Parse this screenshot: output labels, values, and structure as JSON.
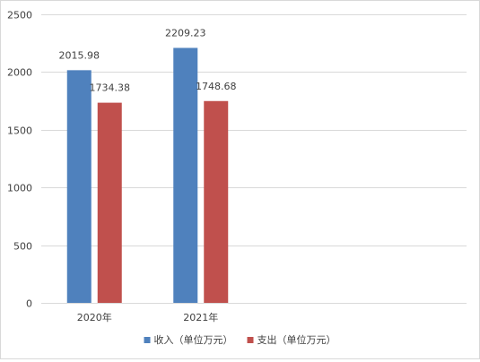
{
  "chart_data": {
    "type": "bar",
    "title": "",
    "xlabel": "",
    "ylabel": "",
    "categories": [
      "2020年",
      "2021年"
    ],
    "slots": 4,
    "series": [
      {
        "name": "收入（单位万元）",
        "values": [
          2015.98,
          2209.23
        ],
        "labels": [
          "2015.98",
          "2209.23"
        ],
        "color": "#4f81bd"
      },
      {
        "name": "支出（单位万元）",
        "values": [
          1734.38,
          1748.68
        ],
        "labels": [
          "1734.38",
          "1748.68"
        ],
        "color": "#c0504d"
      }
    ],
    "ylim": [
      0,
      2500
    ],
    "yticks": [
      0,
      500,
      1000,
      1500,
      2000,
      2500
    ],
    "grid": true,
    "gridColor": "#d9d9d9",
    "legend": "bottom"
  }
}
